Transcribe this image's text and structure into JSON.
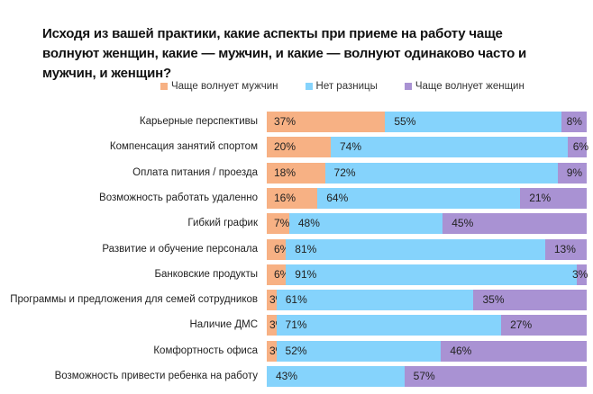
{
  "chart_data": {
    "type": "bar",
    "orientation": "horizontal",
    "stacked": true,
    "title": "Исходя из вашей практики, какие аспекты при приеме на работу чаще волнуют женщин, какие — мужчин, и какие — волнуют одинаково часто и мужчин, и женщин?",
    "xlabel": "",
    "ylabel": "",
    "xlim": [
      0,
      100
    ],
    "grid": false,
    "legend_position": "top-center",
    "categories": [
      "Карьерные перспективы",
      "Компенсация занятий спортом",
      "Оплата питания / проезда",
      "Возможность работать удаленно",
      "Гибкий график",
      "Развитие и обучение персонала",
      "Банковские продукты",
      "Программы и предложения для семей сотрудников",
      "Наличие ДМС",
      "Комфортность офиса",
      "Возможность привести ребенка на работу"
    ],
    "series": [
      {
        "name": "Чаще волнует мужчин",
        "color": "#F7B184",
        "values": [
          37,
          20,
          18,
          16,
          7,
          6,
          6,
          3,
          3,
          3,
          0
        ]
      },
      {
        "name": "Нет разницы",
        "color": "#85D3FC",
        "values": [
          55,
          74,
          72,
          64,
          48,
          81,
          91,
          61,
          71,
          52,
          43
        ]
      },
      {
        "name": "Чаще волнует женщин",
        "color": "#A992D3",
        "values": [
          8,
          6,
          9,
          21,
          45,
          13,
          3,
          35,
          27,
          46,
          57
        ]
      }
    ],
    "data_labels": [
      [
        "37%",
        "55%",
        "8%"
      ],
      [
        "20%",
        "74%",
        "6%"
      ],
      [
        "18%",
        "72%",
        "9%"
      ],
      [
        "16%",
        "64%",
        "21%"
      ],
      [
        "7%",
        "48%",
        "45%"
      ],
      [
        "6%",
        "81%",
        "13%"
      ],
      [
        "6%",
        "91%",
        "3%"
      ],
      [
        "3%",
        "61%",
        "35%"
      ],
      [
        "3%",
        "71%",
        "27%"
      ],
      [
        "3%",
        "52%",
        "46%"
      ],
      [
        "",
        "43%",
        "57%"
      ]
    ]
  }
}
